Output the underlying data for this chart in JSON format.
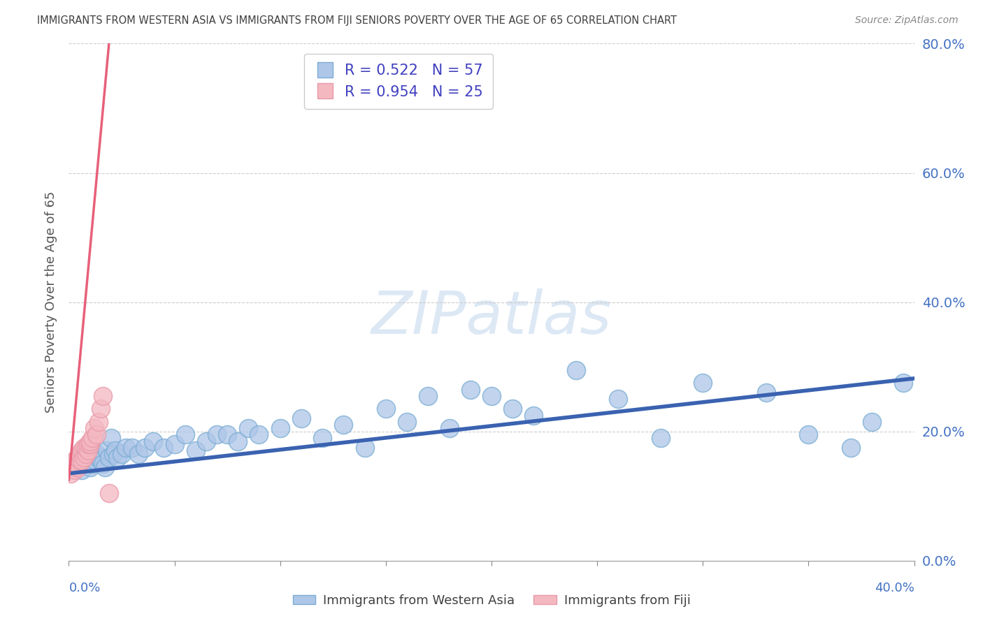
{
  "title": "IMMIGRANTS FROM WESTERN ASIA VS IMMIGRANTS FROM FIJI SENIORS POVERTY OVER THE AGE OF 65 CORRELATION CHART",
  "source": "Source: ZipAtlas.com",
  "ylabel_label": "Seniors Poverty Over the Age of 65",
  "legend_label1": "Immigrants from Western Asia",
  "legend_label2": "Immigrants from Fiji",
  "R1": 0.522,
  "N1": 57,
  "R2": 0.954,
  "N2": 25,
  "blue_color": "#aec6e8",
  "pink_color": "#f4b8c1",
  "blue_edge_color": "#7badd4",
  "pink_edge_color": "#e89aaa",
  "blue_line_color": "#3a62b0",
  "pink_line_color": "#e8607a",
  "title_color": "#404040",
  "axis_label_color": "#4472c4",
  "legend_text_color": "#4040c0",
  "watermark_color": "#dde8f5",
  "background_color": "#ffffff",
  "xlim": [
    0.0,
    0.4
  ],
  "ylim": [
    0.0,
    0.8
  ],
  "blue_scatter_x": [
    0.003,
    0.005,
    0.006,
    0.008,
    0.009,
    0.01,
    0.011,
    0.012,
    0.013,
    0.014,
    0.015,
    0.016,
    0.017,
    0.018,
    0.019,
    0.02,
    0.021,
    0.022,
    0.023,
    0.025,
    0.027,
    0.03,
    0.033,
    0.036,
    0.04,
    0.045,
    0.05,
    0.055,
    0.06,
    0.065,
    0.07,
    0.075,
    0.08,
    0.085,
    0.09,
    0.1,
    0.11,
    0.12,
    0.13,
    0.14,
    0.15,
    0.16,
    0.17,
    0.18,
    0.19,
    0.2,
    0.21,
    0.22,
    0.24,
    0.26,
    0.28,
    0.3,
    0.33,
    0.35,
    0.37,
    0.38,
    0.395
  ],
  "blue_scatter_y": [
    0.145,
    0.155,
    0.14,
    0.16,
    0.15,
    0.145,
    0.15,
    0.155,
    0.165,
    0.16,
    0.155,
    0.15,
    0.145,
    0.17,
    0.16,
    0.19,
    0.165,
    0.17,
    0.16,
    0.165,
    0.175,
    0.175,
    0.165,
    0.175,
    0.185,
    0.175,
    0.18,
    0.195,
    0.17,
    0.185,
    0.195,
    0.195,
    0.185,
    0.205,
    0.195,
    0.205,
    0.22,
    0.19,
    0.21,
    0.175,
    0.235,
    0.215,
    0.255,
    0.205,
    0.265,
    0.255,
    0.235,
    0.225,
    0.295,
    0.25,
    0.19,
    0.275,
    0.26,
    0.195,
    0.175,
    0.215,
    0.275
  ],
  "pink_scatter_x": [
    0.001,
    0.002,
    0.003,
    0.003,
    0.004,
    0.004,
    0.005,
    0.005,
    0.006,
    0.006,
    0.007,
    0.007,
    0.008,
    0.008,
    0.009,
    0.009,
    0.01,
    0.01,
    0.011,
    0.012,
    0.013,
    0.014,
    0.015,
    0.016,
    0.019
  ],
  "pink_scatter_y": [
    0.135,
    0.145,
    0.14,
    0.155,
    0.145,
    0.16,
    0.155,
    0.165,
    0.155,
    0.17,
    0.16,
    0.175,
    0.165,
    0.175,
    0.17,
    0.18,
    0.18,
    0.185,
    0.19,
    0.205,
    0.195,
    0.215,
    0.235,
    0.255,
    0.105
  ],
  "blue_trend_x": [
    0.0,
    0.4
  ],
  "blue_trend_y": [
    0.135,
    0.282
  ],
  "pink_trend_x": [
    0.0,
    0.019
  ],
  "pink_trend_y": [
    0.125,
    0.8
  ]
}
